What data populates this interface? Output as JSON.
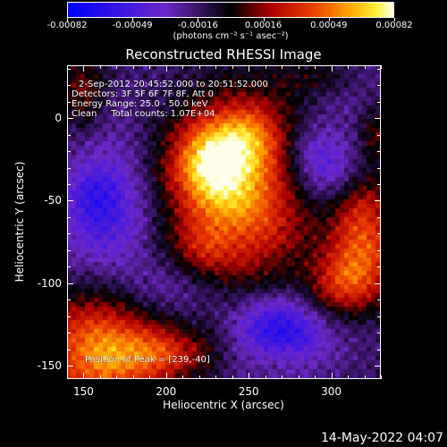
{
  "colorbar": {
    "ticks": [
      "-0.00082",
      "-0.00049",
      "-0.00016",
      "0.00016",
      "0.00049",
      "0.00082"
    ],
    "units": "(photons cm⁻² s⁻¹ asec⁻²)"
  },
  "plot": {
    "title": "Reconstructed RHESSI Image",
    "xlabel": "Heliocentric X (arcsec)",
    "ylabel": "Heliocentric Y (arcsec)",
    "x_ticks": [
      "150",
      "200",
      "250",
      "300"
    ],
    "y_ticks": [
      "0",
      "-50",
      "-100",
      "-150"
    ]
  },
  "annotations": {
    "time_range": "2-Sep-2012 20:45:52.000 to 20:51:52.000",
    "detectors": "Detectors: 3F 5F 6F 7F 8F, Att 0",
    "energy_range": "Energy Range: 25.0 - 50.0 keV",
    "clean_counts": "Clean     Total counts: 1.07E+04",
    "peak": "Position of Peak = [239,-40]"
  },
  "footer_date": "14-May-2022 04:07"
}
